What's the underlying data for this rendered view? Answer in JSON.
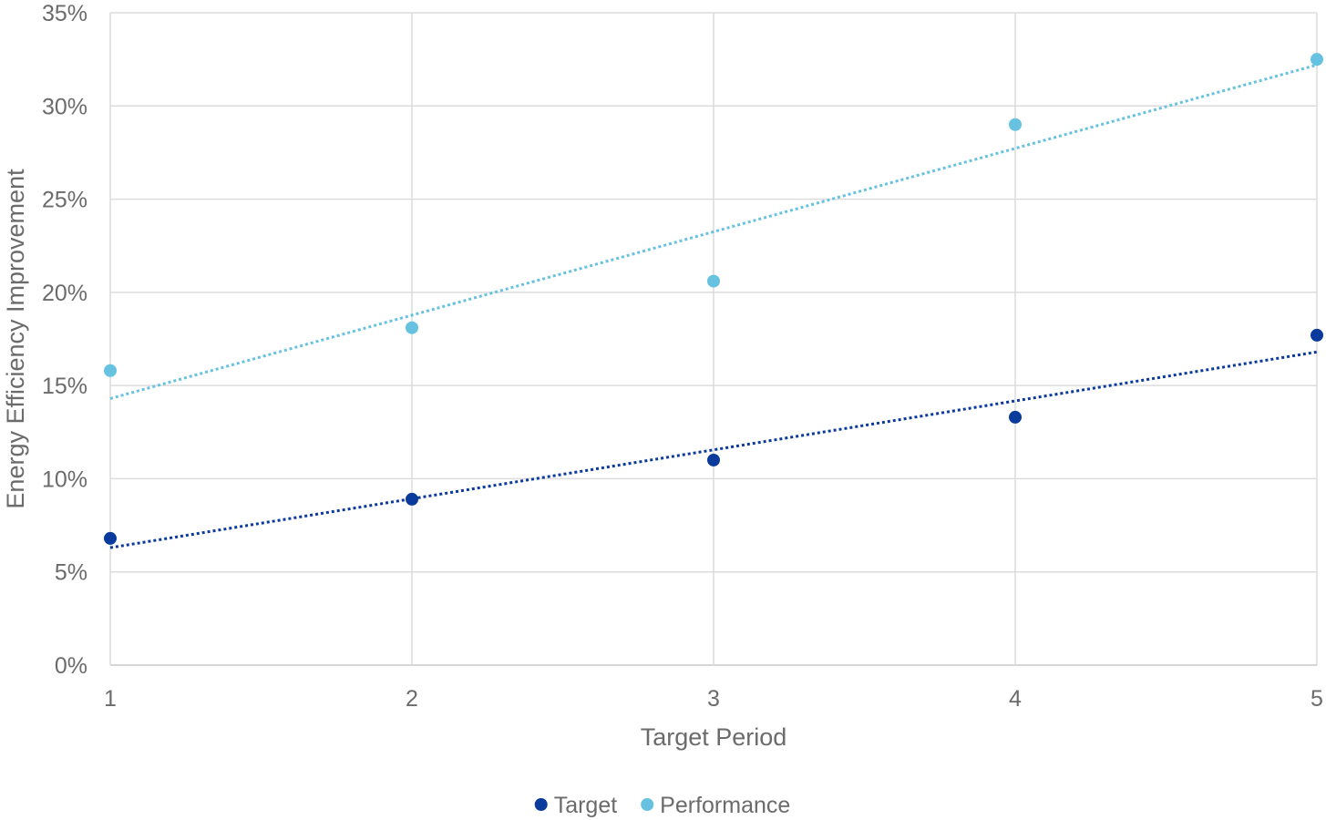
{
  "chart_data": {
    "type": "scatter",
    "title": "",
    "xlabel": "Target Period",
    "ylabel": "Energy Efficiency Improvement",
    "xlim": [
      1,
      5
    ],
    "ylim": [
      0,
      35
    ],
    "x_ticks": [
      "1",
      "2",
      "3",
      "4",
      "5"
    ],
    "y_ticks": [
      "0%",
      "5%",
      "10%",
      "15%",
      "20%",
      "25%",
      "30%",
      "35%"
    ],
    "grid": true,
    "legend_position": "bottom",
    "series": [
      {
        "name": "Target",
        "color": "#0a3a9c",
        "x": [
          1,
          2,
          3,
          4,
          5
        ],
        "values": [
          6.8,
          8.9,
          11.0,
          13.3,
          17.7
        ],
        "trendline": {
          "type": "linear",
          "style": "dotted",
          "from": [
            1,
            6.3
          ],
          "to": [
            5,
            16.8
          ]
        }
      },
      {
        "name": "Performance",
        "color": "#66c2e0",
        "x": [
          1,
          2,
          3,
          4,
          5
        ],
        "values": [
          15.8,
          18.1,
          20.6,
          29.0,
          32.5
        ],
        "trendline": {
          "type": "linear",
          "style": "dotted",
          "from": [
            1,
            14.3
          ],
          "to": [
            5,
            32.2
          ]
        }
      }
    ]
  }
}
